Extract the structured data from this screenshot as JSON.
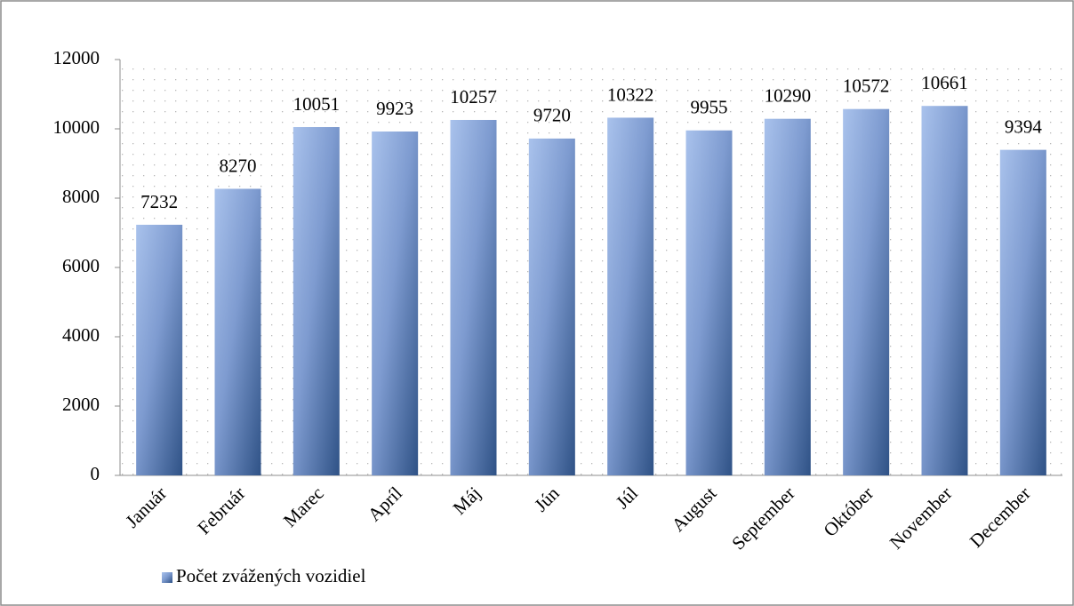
{
  "chart_data": {
    "type": "bar",
    "categories": [
      "Január",
      "Február",
      "Marec",
      "Apríl",
      "Máj",
      "Jún",
      "Júl",
      "August",
      "September",
      "Október",
      "November",
      "December"
    ],
    "series": [
      {
        "name": "Počet zvážených vozidiel",
        "color": "#2f5286",
        "values": [
          7232,
          8270,
          10051,
          9923,
          10257,
          9720,
          10322,
          9955,
          10290,
          10572,
          10661,
          9394
        ]
      }
    ],
    "ylim": [
      0,
      12000
    ],
    "yticks": [
      0,
      2000,
      4000,
      6000,
      8000,
      10000,
      12000
    ],
    "grid": false,
    "legend": "bottom-left"
  }
}
